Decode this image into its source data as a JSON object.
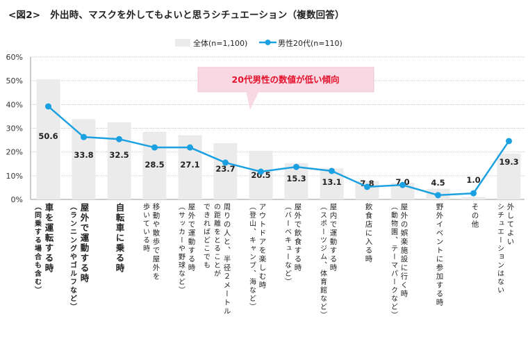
{
  "title": {
    "fig": "<図2>",
    "text": "外出時、マスクを外してもよいと思うシチュエーション（複数回答）"
  },
  "callout": {
    "text": "20代男性の数値が低い傾向",
    "bg": "#f8d9e3",
    "color": "#e5102b"
  },
  "chart_data": {
    "type": "bar+line",
    "ylim": [
      0,
      60
    ],
    "yticks": [
      "0%",
      "10%",
      "20%",
      "30%",
      "40%",
      "50%",
      "60%"
    ],
    "grid": true,
    "legend_position": "top",
    "categories": [
      {
        "main": "車を運転する時",
        "sub": "（同乗する場合も含む）",
        "bold": true
      },
      {
        "main": "屋外で運動する時",
        "sub": "（ランニングやゴルフなど）",
        "bold": true
      },
      {
        "main": "自転車に乗る時",
        "sub": "",
        "bold": true
      },
      {
        "main": "移動や散歩で屋外を",
        "sub": "歩いている時",
        "bold": false
      },
      {
        "main": "屋外で運動する時",
        "sub": "（サッカーや野球など）",
        "bold": false
      },
      {
        "main": "周りの人と、半径２メートル",
        "sub": "の距離をとることが",
        "sub2": "できればどこでも",
        "bold": false
      },
      {
        "main": "アウトドアを楽しむ時",
        "sub": "（登山、キャンプ、海など）",
        "bold": false
      },
      {
        "main": "屋外で飲食する時",
        "sub": "（バーベキューなど）",
        "bold": false
      },
      {
        "main": "屋内で運動する時",
        "sub": "（スポーツジム、体育館など）",
        "bold": false
      },
      {
        "main": "飲食店に入る時",
        "sub": "",
        "bold": false
      },
      {
        "main": "屋外の娯楽施設に行く時",
        "sub": "（動物園、テーマパークなど）",
        "bold": false
      },
      {
        "main": "野外イベントに参加する時",
        "sub": "",
        "bold": false
      },
      {
        "main": "その他",
        "sub": "",
        "bold": false
      },
      {
        "main": "外してよい",
        "sub": "シチュエーションはない",
        "bold": false
      }
    ],
    "series": [
      {
        "name": "全体(n=1,100)",
        "type": "bar",
        "color": "#ebebeb",
        "values": [
          50.6,
          33.8,
          32.5,
          28.5,
          27.1,
          23.7,
          20.5,
          15.3,
          13.1,
          7.8,
          7.0,
          4.5,
          1.0,
          19.3
        ],
        "labels": [
          "50.6",
          "33.8",
          "32.5",
          "28.5",
          "27.1",
          "23.7",
          "20.5",
          "15.3",
          "13.1",
          "7.8",
          "7.0",
          "4.5",
          "1.0",
          "19.3"
        ]
      },
      {
        "name": "男性20代(n=110)",
        "type": "line",
        "color": "#1ba1e2",
        "values": [
          39.2,
          26.3,
          25.4,
          21.9,
          21.9,
          15.5,
          11.7,
          13.7,
          12.0,
          5.3,
          6.1,
          1.8,
          2.6,
          24.6
        ]
      }
    ]
  }
}
